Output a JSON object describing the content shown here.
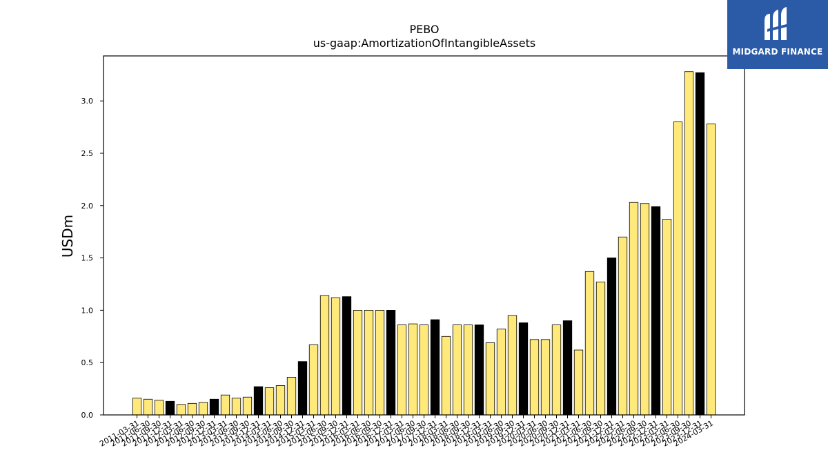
{
  "chart_data": {
    "type": "bar",
    "title": "PEBO",
    "subtitle": "us-gaap:AmortizationOfIntangibleAssets",
    "xlabel": "",
    "ylabel": "USDm",
    "ylim": [
      0,
      3.43
    ],
    "yticks": [
      "0.0",
      "0.5",
      "1.0",
      "1.5",
      "2.0",
      "2.5",
      "3.0"
    ],
    "grid": false,
    "colors": {
      "quarter": "#ffe97a",
      "year_end": "#000000",
      "edge": "#000000"
    },
    "categories": [
      "2011-03-31",
      "2011-06-30",
      "2011-09-30",
      "2011-12-31",
      "2012-03-31",
      "2012-06-30",
      "2012-09-30",
      "2012-12-31",
      "2013-03-31",
      "2013-06-30",
      "2013-09-30",
      "2013-12-31",
      "2014-03-31",
      "2014-06-30",
      "2014-09-30",
      "2014-12-31",
      "2015-03-31",
      "2015-06-30",
      "2015-09-30",
      "2015-12-31",
      "2016-03-31",
      "2016-06-30",
      "2016-09-30",
      "2016-12-31",
      "2017-03-31",
      "2017-06-30",
      "2017-09-30",
      "2017-12-31",
      "2018-03-31",
      "2018-06-30",
      "2018-09-30",
      "2018-12-31",
      "2019-03-31",
      "2019-06-30",
      "2019-09-30",
      "2019-12-31",
      "2020-03-31",
      "2020-06-30",
      "2020-09-30",
      "2020-12-31",
      "2021-03-31",
      "2021-06-30",
      "2021-09-30",
      "2021-12-31",
      "2022-03-31",
      "2022-06-30",
      "2022-09-30",
      "2022-12-31",
      "2023-03-31",
      "2023-06-30",
      "2023-09-30",
      "2023-12-31",
      "2024-03-31"
    ],
    "values": [
      0.16,
      0.15,
      0.14,
      0.13,
      0.1,
      0.11,
      0.12,
      0.15,
      0.19,
      0.16,
      0.17,
      0.27,
      0.26,
      0.28,
      0.36,
      0.51,
      0.67,
      1.14,
      1.12,
      1.13,
      1.0,
      1.0,
      1.0,
      1.0,
      0.86,
      0.87,
      0.86,
      0.91,
      0.75,
      0.86,
      0.86,
      0.86,
      0.69,
      0.82,
      0.95,
      0.88,
      0.72,
      0.72,
      0.86,
      0.9,
      0.62,
      1.37,
      1.27,
      1.5,
      1.7,
      2.03,
      2.02,
      1.99,
      1.87,
      2.8,
      3.28,
      3.27,
      2.78
    ],
    "year_end_highlight": true
  },
  "logo": {
    "text": "MIDGARD FINANCE",
    "icon": "midgard-logo-icon"
  }
}
